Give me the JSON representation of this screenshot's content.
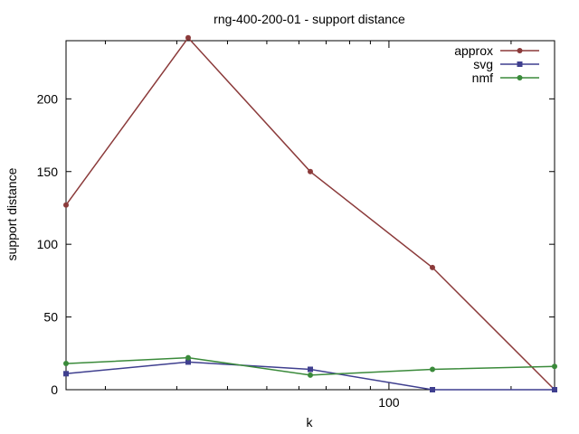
{
  "chart_data": {
    "type": "line",
    "title": "rng-400-200-01 - support distance",
    "xlabel": "k",
    "ylabel": "support distance",
    "xscale": "log",
    "xlim": [
      16,
      256
    ],
    "ylim": [
      0,
      240
    ],
    "x": [
      16,
      32,
      64,
      128,
      256
    ],
    "x_ticks": [
      100
    ],
    "y_ticks": [
      0,
      50,
      100,
      150,
      200
    ],
    "grid": false,
    "legend_position": "top-right",
    "series": [
      {
        "name": "approx",
        "color": "#8b3a3a",
        "marker": "circle",
        "values": [
          127,
          242,
          150,
          84,
          0
        ]
      },
      {
        "name": "svg",
        "color": "#3f3f8f",
        "marker": "square",
        "values": [
          11,
          19,
          14,
          0,
          0
        ]
      },
      {
        "name": "nmf",
        "color": "#3a8a3a",
        "marker": "circle",
        "values": [
          18,
          22,
          10,
          14,
          16
        ]
      }
    ]
  }
}
